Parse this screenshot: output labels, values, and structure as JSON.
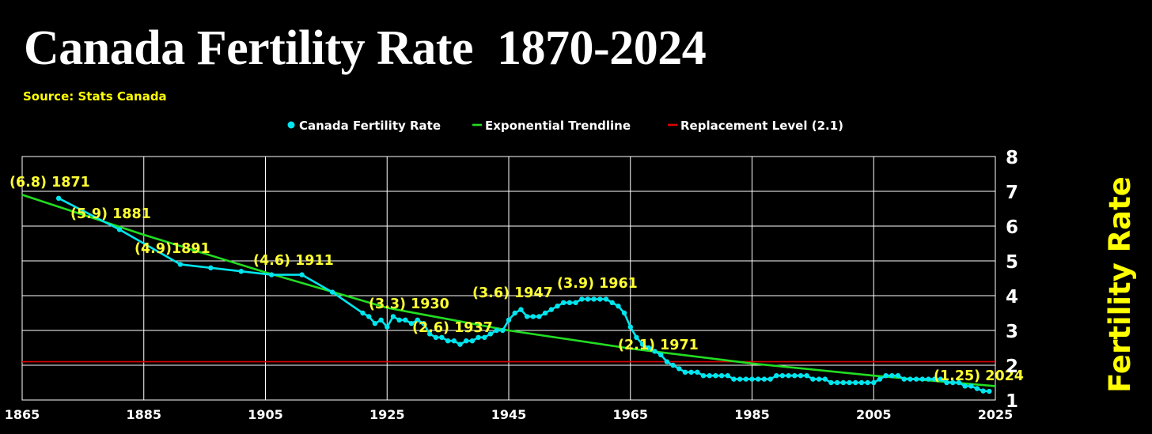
{
  "title": "Canada Fertility Rate  1870-2024",
  "source": "Source: Stats Canada",
  "colors": {
    "background": "#000000",
    "series": "#00e5ee",
    "trend": "#22dd22",
    "replacement": "#dd0000",
    "grid": "#ffffff",
    "annotation": "#ffff33",
    "axis_title": "#ffff00"
  },
  "chart_data": {
    "type": "line",
    "title": "Canada Fertility Rate  1870-2024",
    "ylabel": "Fertility Rate",
    "xlim": [
      1865,
      2025
    ],
    "ylim": [
      1,
      8
    ],
    "x_ticks": [
      "1865",
      "1885",
      "1905",
      "1925",
      "1945",
      "1965",
      "1985",
      "2005",
      "2025"
    ],
    "x_tick_values": [
      1865,
      1885,
      1905,
      1925,
      1945,
      1965,
      1985,
      2005,
      2025
    ],
    "y_ticks": [
      "1",
      "2",
      "3",
      "4",
      "5",
      "6",
      "7",
      "8"
    ],
    "y_tick_values": [
      1,
      2,
      3,
      4,
      5,
      6,
      7,
      8
    ],
    "y_axis_side": "right",
    "grid": true,
    "legend_position": "top-center",
    "legend": [
      {
        "label": "Canada Fertility Rate",
        "marker": "dot",
        "series": "series"
      },
      {
        "label": "Exponential Trendline",
        "marker": "dash",
        "series": "trend"
      },
      {
        "label": "Replacement Level (2.1)",
        "marker": "dash",
        "series": "replacement"
      }
    ],
    "series": [
      {
        "name": "Canada Fertility Rate",
        "points": [
          [
            1871,
            6.8
          ],
          [
            1881,
            5.9
          ],
          [
            1891,
            4.9
          ],
          [
            1896,
            4.8
          ],
          [
            1901,
            4.7
          ],
          [
            1906,
            4.6
          ],
          [
            1911,
            4.6
          ],
          [
            1916,
            4.1
          ],
          [
            1921,
            3.5
          ],
          [
            1922,
            3.4
          ],
          [
            1923,
            3.2
          ],
          [
            1924,
            3.3
          ],
          [
            1925,
            3.1
          ],
          [
            1926,
            3.4
          ],
          [
            1927,
            3.3
          ],
          [
            1928,
            3.3
          ],
          [
            1929,
            3.2
          ],
          [
            1930,
            3.3
          ],
          [
            1931,
            3.2
          ],
          [
            1932,
            2.9
          ],
          [
            1933,
            2.8
          ],
          [
            1934,
            2.8
          ],
          [
            1935,
            2.7
          ],
          [
            1936,
            2.7
          ],
          [
            1937,
            2.6
          ],
          [
            1938,
            2.7
          ],
          [
            1939,
            2.7
          ],
          [
            1940,
            2.8
          ],
          [
            1941,
            2.8
          ],
          [
            1942,
            2.9
          ],
          [
            1943,
            3.0
          ],
          [
            1944,
            3.0
          ],
          [
            1945,
            3.3
          ],
          [
            1946,
            3.5
          ],
          [
            1947,
            3.6
          ],
          [
            1948,
            3.4
          ],
          [
            1949,
            3.4
          ],
          [
            1950,
            3.4
          ],
          [
            1951,
            3.5
          ],
          [
            1952,
            3.6
          ],
          [
            1953,
            3.7
          ],
          [
            1954,
            3.8
          ],
          [
            1955,
            3.8
          ],
          [
            1956,
            3.8
          ],
          [
            1957,
            3.9
          ],
          [
            1958,
            3.9
          ],
          [
            1959,
            3.9
          ],
          [
            1960,
            3.9
          ],
          [
            1961,
            3.9
          ],
          [
            1962,
            3.8
          ],
          [
            1963,
            3.7
          ],
          [
            1964,
            3.5
          ],
          [
            1965,
            3.1
          ],
          [
            1966,
            2.8
          ],
          [
            1967,
            2.6
          ],
          [
            1968,
            2.5
          ],
          [
            1969,
            2.4
          ],
          [
            1970,
            2.3
          ],
          [
            1971,
            2.1
          ],
          [
            1972,
            2.0
          ],
          [
            1973,
            1.9
          ],
          [
            1974,
            1.8
          ],
          [
            1975,
            1.8
          ],
          [
            1976,
            1.8
          ],
          [
            1977,
            1.7
          ],
          [
            1978,
            1.7
          ],
          [
            1979,
            1.7
          ],
          [
            1980,
            1.7
          ],
          [
            1981,
            1.7
          ],
          [
            1982,
            1.6
          ],
          [
            1983,
            1.6
          ],
          [
            1984,
            1.6
          ],
          [
            1985,
            1.6
          ],
          [
            1986,
            1.6
          ],
          [
            1987,
            1.6
          ],
          [
            1988,
            1.6
          ],
          [
            1989,
            1.7
          ],
          [
            1990,
            1.7
          ],
          [
            1991,
            1.7
          ],
          [
            1992,
            1.7
          ],
          [
            1993,
            1.7
          ],
          [
            1994,
            1.7
          ],
          [
            1995,
            1.6
          ],
          [
            1996,
            1.6
          ],
          [
            1997,
            1.6
          ],
          [
            1998,
            1.5
          ],
          [
            1999,
            1.5
          ],
          [
            2000,
            1.5
          ],
          [
            2001,
            1.5
          ],
          [
            2002,
            1.5
          ],
          [
            2003,
            1.5
          ],
          [
            2004,
            1.5
          ],
          [
            2005,
            1.5
          ],
          [
            2006,
            1.6
          ],
          [
            2007,
            1.7
          ],
          [
            2008,
            1.7
          ],
          [
            2009,
            1.7
          ],
          [
            2010,
            1.6
          ],
          [
            2011,
            1.6
          ],
          [
            2012,
            1.6
          ],
          [
            2013,
            1.6
          ],
          [
            2014,
            1.6
          ],
          [
            2015,
            1.6
          ],
          [
            2016,
            1.6
          ],
          [
            2017,
            1.5
          ],
          [
            2018,
            1.5
          ],
          [
            2019,
            1.5
          ],
          [
            2020,
            1.4
          ],
          [
            2021,
            1.4
          ],
          [
            2022,
            1.33
          ],
          [
            2023,
            1.26
          ],
          [
            2024,
            1.25
          ]
        ]
      },
      {
        "name": "Exponential Trendline",
        "points": [
          [
            1865,
            6.9
          ],
          [
            1885,
            5.75
          ],
          [
            1905,
            4.67
          ],
          [
            1925,
            3.65
          ],
          [
            1945,
            3.0
          ],
          [
            1965,
            2.48
          ],
          [
            1985,
            2.05
          ],
          [
            2005,
            1.7
          ],
          [
            2025,
            1.4
          ]
        ]
      },
      {
        "name": "Replacement Level (2.1)",
        "value": 2.1
      }
    ],
    "annotations": [
      {
        "text": "(6.8) 1871",
        "x": 1871,
        "y": 6.8
      },
      {
        "text": "(5.9) 1881",
        "x": 1881,
        "y": 5.9
      },
      {
        "text": "(4.9)1891",
        "x": 1891,
        "y": 4.9
      },
      {
        "text": "(4.6) 1911",
        "x": 1911,
        "y": 4.6
      },
      {
        "text": "(3.3) 1930",
        "x": 1930,
        "y": 3.3
      },
      {
        "text": "(2.6) 1937",
        "x": 1937,
        "y": 2.6
      },
      {
        "text": "(3.6) 1947",
        "x": 1947,
        "y": 3.6
      },
      {
        "text": "(3.9) 1961",
        "x": 1961,
        "y": 3.9
      },
      {
        "text": "(2.1) 1971",
        "x": 1971,
        "y": 2.1
      },
      {
        "text": "(1.25) 2024",
        "x": 2024,
        "y": 1.25
      }
    ]
  }
}
